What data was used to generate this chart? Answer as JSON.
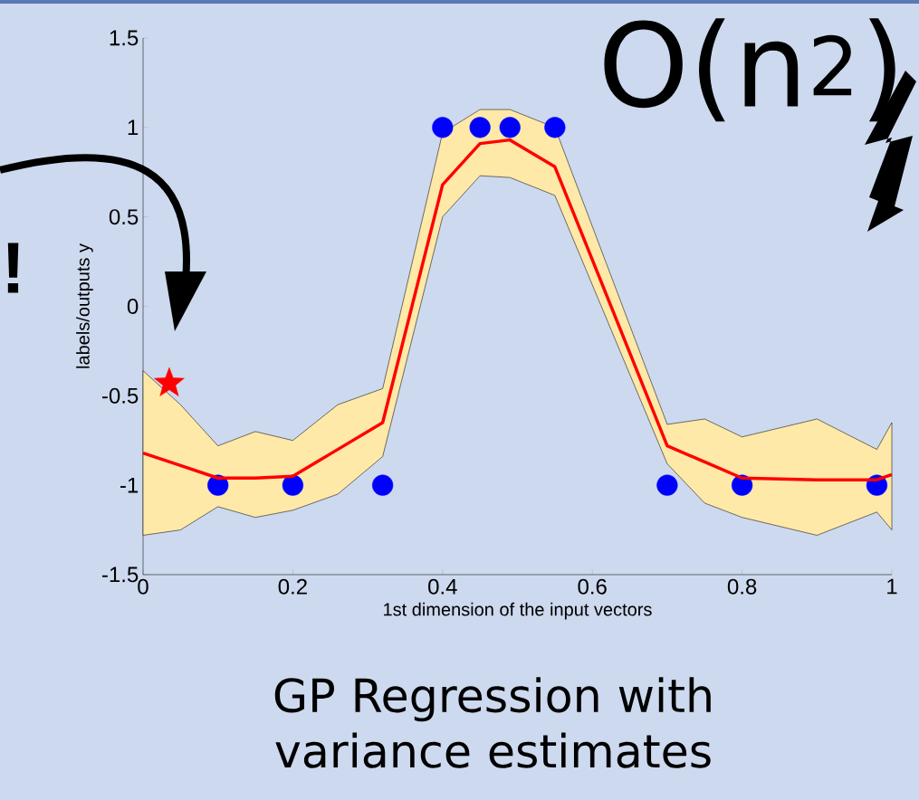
{
  "chart_data": {
    "type": "line",
    "title": "GP Regression with variance estimates",
    "xlabel": "1st dimension of the input vectors",
    "ylabel": "labels/outputs y",
    "xlim": [
      0,
      1
    ],
    "ylim": [
      -1.5,
      1.5
    ],
    "xticks": [
      0,
      0.2,
      0.4,
      0.6,
      0.8,
      1
    ],
    "yticks": [
      -1.5,
      -1,
      -0.5,
      0,
      0.5,
      1,
      1.5
    ],
    "annotations": [
      "O(n$^{2}$)",
      "!"
    ],
    "series": [
      {
        "color": "#ff0000",
        "x": [
          0,
          0.05,
          0.1,
          0.15,
          0.2,
          0.26,
          0.32,
          0.4,
          0.45,
          0.49,
          0.55,
          0.7,
          0.75,
          0.8,
          0.9,
          0.98,
          1
        ],
        "values": [
          -0.82,
          -0.89,
          -0.96,
          -0.96,
          -0.95,
          -0.8,
          -0.65,
          0.68,
          0.91,
          0.93,
          0.78,
          -0.78,
          -0.87,
          -0.96,
          -0.97,
          -0.97,
          -0.94
        ],
        "lower": [
          -1.28,
          -1.25,
          -1.12,
          -1.18,
          -1.14,
          -1.05,
          -0.84,
          0.5,
          0.73,
          0.72,
          0.62,
          -0.88,
          -1.1,
          -1.18,
          -1.28,
          -1.15,
          -1.25
        ],
        "upper": [
          -0.36,
          -0.55,
          -0.78,
          -0.7,
          -0.75,
          -0.55,
          -0.46,
          0.97,
          1.1,
          1.1,
          1.0,
          -0.66,
          -0.63,
          -0.73,
          -0.63,
          -0.8,
          -0.65
        ]
      },
      {
        "type": "scatter",
        "marker": "circle",
        "color": "#0000ff",
        "x": [
          0.4,
          0.45,
          0.49,
          0.55
        ],
        "values": [
          1,
          1,
          1,
          1
        ]
      },
      {
        "type": "scatter",
        "marker": "circle",
        "color": "#0000ff",
        "x": [
          0.1,
          0.2,
          0.32,
          0.7,
          0.8,
          0.98
        ],
        "values": [
          -1,
          -1,
          -1,
          -1,
          -1,
          -1
        ]
      },
      {
        "type": "scatter",
        "marker": "star",
        "color": "#ff0000",
        "x": [
          0.035
        ],
        "values": [
          -0.43
        ]
      }
    ]
  }
}
